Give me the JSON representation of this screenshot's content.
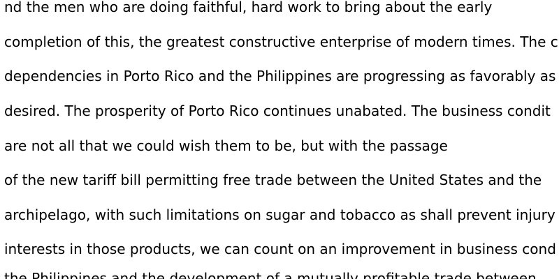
{
  "document": {
    "lines": [
      "nd the men who are doing faithful, hard work to bring about the early",
      "completion of this, the greatest constructive enterprise of modern times. The c",
      "dependencies in Porto Rico and the Philippines are progressing as favorably as",
      "desired. The prosperity of Porto Rico continues unabated. The business condit",
      "are not all that we could wish them to be, but with the passage",
      "of the new tariff bill permitting free trade between the United States and the",
      "archipelago, with such limitations on sugar and tobacco as shall prevent injury",
      "interests in those products, we can count on an improvement in business cond",
      "the Philippines and the development of a mutually profitable trade between"
    ]
  }
}
